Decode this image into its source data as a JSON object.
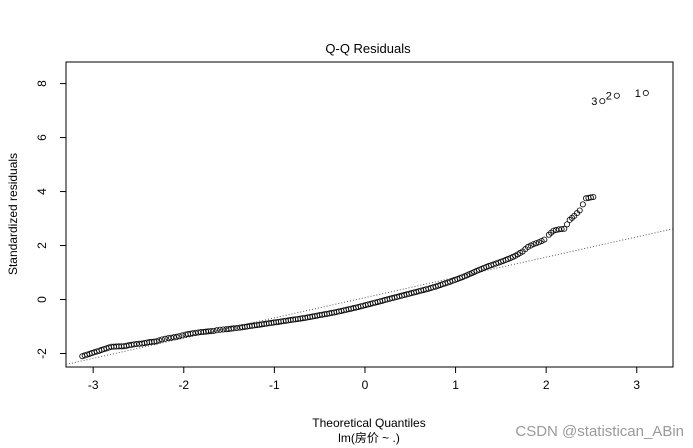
{
  "chart_data": {
    "type": "scatter",
    "title": "Q-Q Residuals",
    "xlabel": "Theoretical Quantiles",
    "subtitle": "lm(房价 ~ .)",
    "ylabel": "Standardized residuals",
    "xlim": [
      -3.3,
      3.4
    ],
    "ylim": [
      -2.5,
      8.8
    ],
    "xticks": [
      -3,
      -2,
      -1,
      0,
      1,
      2,
      3
    ],
    "yticks": [
      -2,
      0,
      2,
      4,
      6,
      8
    ],
    "grid": false,
    "reference_line": {
      "intercept": 0.07,
      "slope": 0.75,
      "style": "dotted"
    },
    "colors": {
      "points": "#000000",
      "line": "#555555",
      "axis": "#000000"
    },
    "outliers": [
      {
        "x": 3.1,
        "y": 7.65,
        "label": "1"
      },
      {
        "x": 2.78,
        "y": 7.55,
        "label": "2"
      },
      {
        "x": 2.62,
        "y": 7.35,
        "label": "3"
      }
    ],
    "points": [
      [
        -3.12,
        -2.1
      ],
      [
        -2.8,
        -1.75
      ],
      [
        -2.66,
        -1.73
      ],
      [
        -2.55,
        -1.66
      ],
      [
        -2.46,
        -1.63
      ],
      [
        -2.38,
        -1.58
      ],
      [
        -2.3,
        -1.55
      ],
      [
        -2.24,
        -1.48
      ],
      [
        -2.17,
        -1.43
      ],
      [
        -2.11,
        -1.4
      ],
      [
        -2.05,
        -1.36
      ],
      [
        -1.98,
        -1.3
      ],
      [
        -1.9,
        -1.25
      ],
      [
        -1.84,
        -1.22
      ],
      [
        -1.78,
        -1.2
      ],
      [
        -1.73,
        -1.18
      ],
      [
        -1.67,
        -1.16
      ],
      [
        -1.6,
        -1.12
      ],
      [
        -1.53,
        -1.1
      ],
      [
        -1.45,
        -1.07
      ],
      [
        -1.38,
        -1.04
      ],
      [
        -1.3,
        -1.0
      ],
      [
        -1.22,
        -0.96
      ],
      [
        -1.14,
        -0.92
      ],
      [
        -1.06,
        -0.88
      ],
      [
        -0.98,
        -0.84
      ],
      [
        -0.9,
        -0.8
      ],
      [
        -0.82,
        -0.76
      ],
      [
        -0.74,
        -0.72
      ],
      [
        -0.66,
        -0.68
      ],
      [
        -0.58,
        -0.63
      ],
      [
        -0.5,
        -0.58
      ],
      [
        -0.42,
        -0.53
      ],
      [
        -0.34,
        -0.48
      ],
      [
        -0.26,
        -0.42
      ],
      [
        -0.18,
        -0.36
      ],
      [
        -0.1,
        -0.3
      ],
      [
        -0.02,
        -0.23
      ],
      [
        0.06,
        -0.16
      ],
      [
        0.14,
        -0.09
      ],
      [
        0.22,
        -0.02
      ],
      [
        0.3,
        0.05
      ],
      [
        0.38,
        0.12
      ],
      [
        0.46,
        0.19
      ],
      [
        0.54,
        0.26
      ],
      [
        0.62,
        0.33
      ],
      [
        0.7,
        0.4
      ],
      [
        0.78,
        0.48
      ],
      [
        0.86,
        0.57
      ],
      [
        0.94,
        0.66
      ],
      [
        1.02,
        0.76
      ],
      [
        1.1,
        0.86
      ],
      [
        1.18,
        0.98
      ],
      [
        1.26,
        1.1
      ],
      [
        1.34,
        1.21
      ],
      [
        1.42,
        1.3
      ],
      [
        1.5,
        1.4
      ],
      [
        1.58,
        1.5
      ],
      [
        1.66,
        1.62
      ],
      [
        1.74,
        1.78
      ],
      [
        1.8,
        1.95
      ],
      [
        1.86,
        2.05
      ],
      [
        1.92,
        2.12
      ],
      [
        1.98,
        2.22
      ],
      [
        2.03,
        2.4
      ],
      [
        2.08,
        2.55
      ],
      [
        2.14,
        2.6
      ],
      [
        2.2,
        2.62
      ],
      [
        2.26,
        2.95
      ],
      [
        2.31,
        3.1
      ],
      [
        2.37,
        3.3
      ],
      [
        2.44,
        3.75
      ],
      [
        2.52,
        3.8
      ]
    ]
  },
  "watermark": "CSDN @statistican_ABin"
}
